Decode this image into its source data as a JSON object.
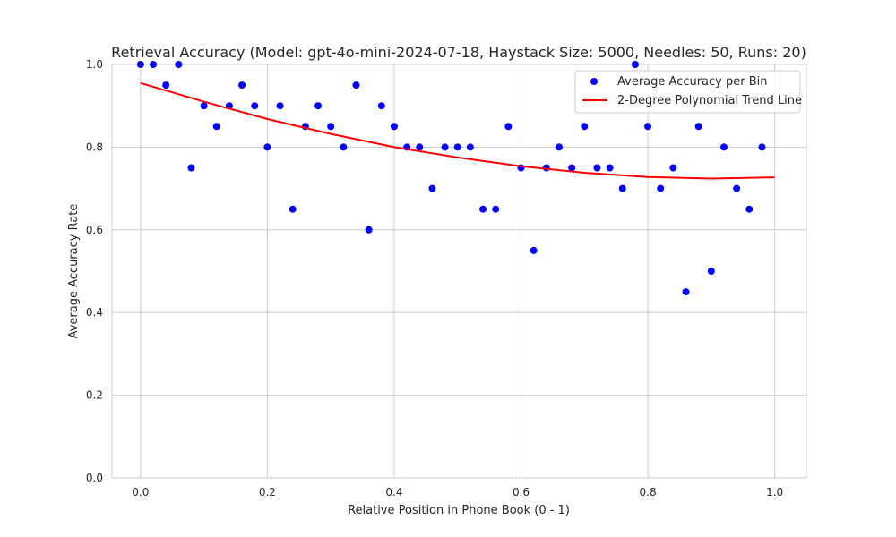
{
  "chart_data": {
    "type": "scatter",
    "title": "Retrieval Accuracy (Model: gpt-4o-mini-2024-07-18, Haystack Size: 5000, Needles: 50, Runs: 20)",
    "xlabel": "Relative Position in Phone Book (0 - 1)",
    "ylabel": "Average Accuracy Rate",
    "xlim": [
      -0.045,
      1.05
    ],
    "ylim": [
      0.0,
      1.0
    ],
    "x_ticks": [
      0.0,
      0.2,
      0.4,
      0.6,
      0.8,
      1.0
    ],
    "x_tick_labels": [
      "0.0",
      "0.2",
      "0.4",
      "0.6",
      "0.8",
      "1.0"
    ],
    "y_ticks": [
      0.0,
      0.2,
      0.4,
      0.6,
      0.8,
      1.0
    ],
    "y_tick_labels": [
      "0.0",
      "0.2",
      "0.4",
      "0.6",
      "0.8",
      "1.0"
    ],
    "grid": true,
    "legend_position": "top-right",
    "series": [
      {
        "name": "Average Accuracy per Bin",
        "kind": "scatter",
        "color": "#0000ff",
        "x": [
          0.0,
          0.02,
          0.04,
          0.06,
          0.08,
          0.1,
          0.12,
          0.14,
          0.16,
          0.18,
          0.2,
          0.22,
          0.24,
          0.26,
          0.28,
          0.3,
          0.32,
          0.34,
          0.36,
          0.38,
          0.4,
          0.42,
          0.44,
          0.46,
          0.48,
          0.5,
          0.52,
          0.54,
          0.56,
          0.58,
          0.6,
          0.62,
          0.64,
          0.66,
          0.68,
          0.7,
          0.72,
          0.74,
          0.76,
          0.78,
          0.8,
          0.82,
          0.84,
          0.86,
          0.88,
          0.9,
          0.92,
          0.94,
          0.96,
          0.98
        ],
        "y": [
          1.0,
          1.0,
          0.95,
          1.0,
          0.75,
          0.9,
          0.85,
          0.9,
          0.95,
          0.9,
          0.8,
          0.9,
          0.65,
          0.85,
          0.9,
          0.85,
          0.8,
          0.95,
          0.6,
          0.9,
          0.85,
          0.8,
          0.8,
          0.7,
          0.8,
          0.8,
          0.8,
          0.65,
          0.65,
          0.85,
          0.75,
          0.55,
          0.75,
          0.8,
          0.75,
          0.85,
          0.75,
          0.75,
          0.7,
          1.0,
          0.85,
          0.7,
          0.75,
          0.45,
          0.85,
          0.5,
          0.8,
          0.7,
          0.65,
          0.8
        ]
      },
      {
        "name": "2-Degree Polynomial Trend Line",
        "kind": "line",
        "color": "#ff0000",
        "x": [
          0.0,
          0.1,
          0.2,
          0.3,
          0.4,
          0.5,
          0.6,
          0.7,
          0.8,
          0.9,
          1.0
        ],
        "y": [
          0.955,
          0.91,
          0.868,
          0.832,
          0.8,
          0.775,
          0.754,
          0.738,
          0.728,
          0.724,
          0.727
        ]
      }
    ]
  }
}
